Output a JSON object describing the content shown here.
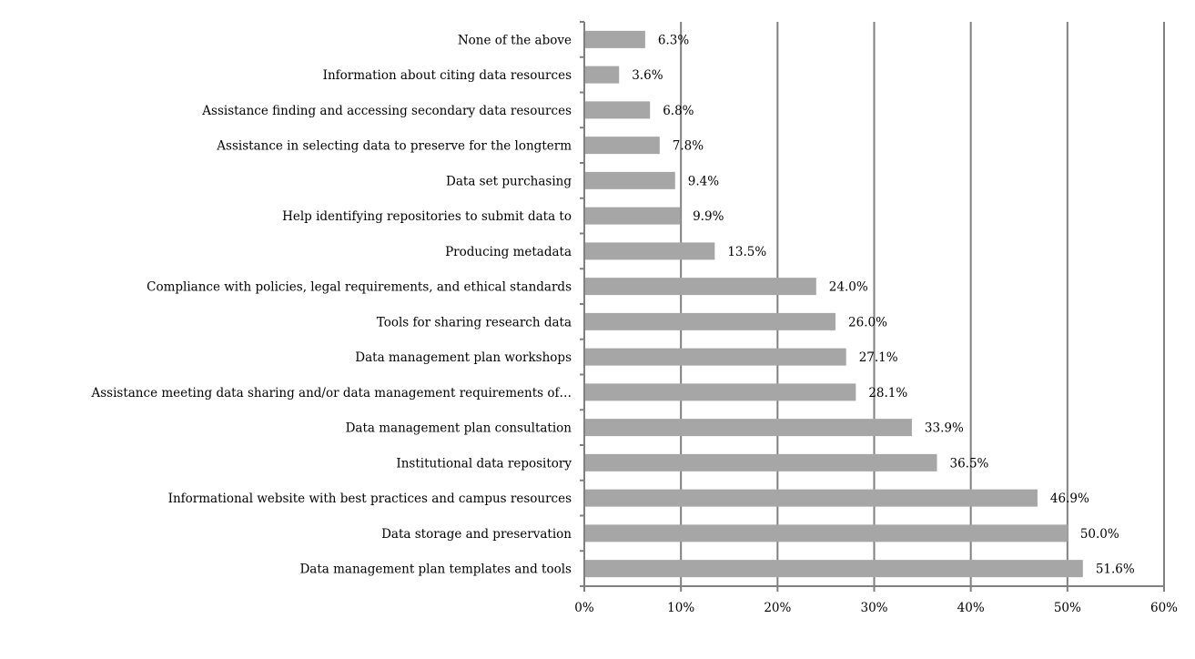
{
  "chart_data": {
    "type": "bar",
    "orientation": "horizontal",
    "title": "",
    "xlabel": "",
    "ylabel": "",
    "xlim": [
      0,
      60
    ],
    "x_ticks": [
      "0%",
      "10%",
      "20%",
      "30%",
      "40%",
      "50%",
      "60%"
    ],
    "grid": true,
    "bar_color": "#a6a6a6",
    "grid_color": "#808080",
    "categories": [
      "None of the above",
      "Information about citing data resources",
      "Assistance finding and accessing secondary data resources",
      "Assistance in selecting data to preserve for the longterm",
      "Data set purchasing",
      "Help identifying repositories to submit data to",
      "Producing metadata",
      "Compliance with policies, legal requirements, and ethical standards",
      "Tools for sharing research data",
      "Data management plan workshops",
      "Assistance meeting data sharing and/or data management requirements of…",
      "Data management plan consultation",
      "Institutional data repository",
      "Informational website with best practices and campus resources",
      "Data storage and preservation",
      "Data management plan templates and tools"
    ],
    "values": [
      6.3,
      3.6,
      6.8,
      7.8,
      9.4,
      9.9,
      13.5,
      24.0,
      26.0,
      27.1,
      28.1,
      33.9,
      36.5,
      46.9,
      50.0,
      51.6
    ],
    "data_labels": [
      "6.3%",
      "3.6%",
      "6.8%",
      "7.8%",
      "9.4%",
      "9.9%",
      "13.5%",
      "24.0%",
      "26.0%",
      "27.1%",
      "28.1%",
      "33.9%",
      "36.5%",
      "46.9%",
      "50.0%",
      "51.6%"
    ]
  }
}
